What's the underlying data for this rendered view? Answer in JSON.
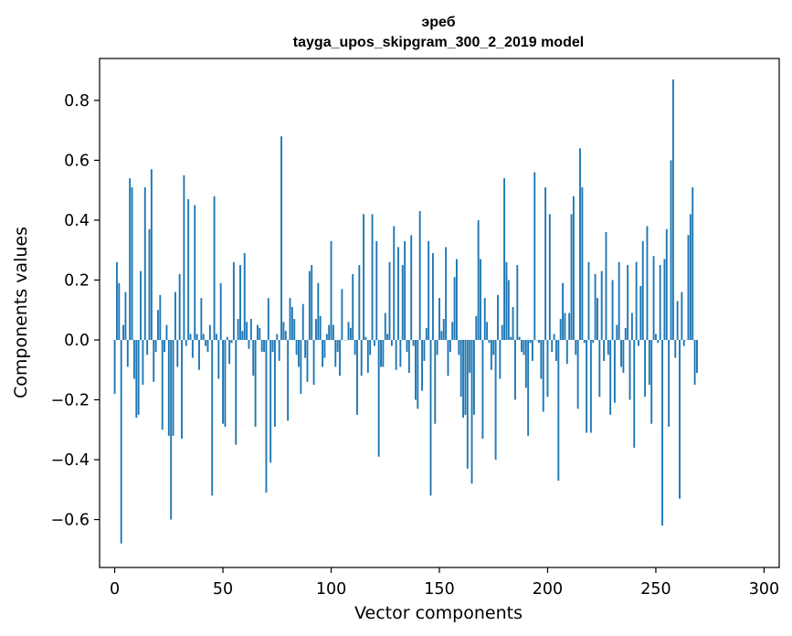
{
  "chart_data": {
    "type": "bar",
    "title_lines": [
      "эреб",
      "tayga_upos_skipgram_300_2_2019 model"
    ],
    "xlabel": "Vector components",
    "ylabel": "Components values",
    "xlim": [
      -7,
      307
    ],
    "ylim": [
      -0.76,
      0.94
    ],
    "xticks": [
      0,
      50,
      100,
      150,
      200,
      250,
      300
    ],
    "yticks": [
      -0.6,
      -0.4,
      -0.2,
      0.0,
      0.2,
      0.4,
      0.6,
      0.8
    ],
    "ytick_labels": [
      "−0.6",
      "−0.4",
      "−0.2",
      "0.0",
      "0.2",
      "0.4",
      "0.6",
      "0.8"
    ],
    "bar_color": "#1f77b4",
    "grid": false,
    "legend": "none",
    "values": [
      -0.18,
      0.26,
      0.19,
      -0.68,
      0.05,
      0.16,
      -0.09,
      0.54,
      0.51,
      -0.13,
      -0.26,
      -0.25,
      0.23,
      -0.15,
      0.51,
      -0.05,
      0.37,
      0.57,
      -0.14,
      -0.04,
      0.1,
      0.15,
      -0.3,
      -0.04,
      0.05,
      -0.32,
      -0.6,
      -0.32,
      0.16,
      -0.09,
      0.22,
      -0.33,
      0.55,
      -0.02,
      0.47,
      0.02,
      -0.06,
      0.45,
      0.02,
      -0.1,
      0.14,
      0.02,
      -0.02,
      -0.04,
      0.05,
      -0.52,
      0.48,
      0.02,
      -0.13,
      0.19,
      -0.28,
      -0.29,
      0.01,
      -0.08,
      -0.01,
      0.26,
      -0.35,
      0.07,
      0.25,
      0.03,
      0.29,
      0.06,
      -0.03,
      0.07,
      -0.12,
      -0.29,
      0.05,
      0.04,
      -0.04,
      -0.04,
      -0.51,
      0.14,
      -0.41,
      -0.04,
      -0.29,
      0.02,
      -0.07,
      0.68,
      0.06,
      0.03,
      -0.27,
      0.14,
      0.11,
      0.07,
      -0.05,
      -0.09,
      -0.18,
      0.12,
      -0.06,
      -0.14,
      0.23,
      0.25,
      -0.15,
      0.07,
      0.19,
      0.08,
      -0.09,
      -0.06,
      0.02,
      0.05,
      0.33,
      0.05,
      -0.09,
      -0.04,
      -0.12,
      0.17,
      0.0,
      0.0,
      0.06,
      0.04,
      0.22,
      -0.05,
      -0.25,
      0.25,
      -0.12,
      0.42,
      0.01,
      -0.11,
      -0.05,
      0.42,
      -0.02,
      0.33,
      -0.39,
      -0.09,
      -0.09,
      0.09,
      0.02,
      0.26,
      -0.02,
      0.38,
      -0.1,
      0.31,
      -0.09,
      0.25,
      0.33,
      -0.04,
      -0.11,
      0.35,
      -0.02,
      -0.2,
      -0.23,
      0.43,
      -0.17,
      -0.07,
      0.04,
      0.33,
      -0.52,
      0.29,
      -0.28,
      -0.05,
      0.14,
      0.03,
      0.07,
      0.31,
      -0.12,
      -0.04,
      0.06,
      0.21,
      0.27,
      -0.05,
      -0.19,
      -0.26,
      -0.25,
      -0.43,
      -0.11,
      -0.48,
      -0.25,
      0.08,
      0.4,
      0.27,
      -0.33,
      0.14,
      0.06,
      -0.01,
      -0.1,
      -0.05,
      -0.4,
      0.15,
      -0.13,
      0.05,
      0.54,
      0.26,
      0.2,
      0.01,
      0.11,
      -0.2,
      0.25,
      0.01,
      -0.04,
      -0.05,
      -0.16,
      -0.32,
      -0.01,
      -0.07,
      0.56,
      0.0,
      -0.01,
      -0.13,
      -0.24,
      0.51,
      -0.19,
      0.42,
      -0.04,
      0.02,
      -0.07,
      -0.47,
      0.07,
      0.19,
      0.09,
      -0.08,
      0.09,
      0.42,
      0.48,
      -0.05,
      -0.23,
      0.64,
      0.51,
      -0.01,
      -0.31,
      0.26,
      -0.31,
      -0.01,
      0.22,
      0.14,
      -0.19,
      0.23,
      -0.07,
      0.36,
      -0.05,
      -0.25,
      0.2,
      -0.21,
      0.05,
      0.26,
      -0.09,
      -0.11,
      0.04,
      0.25,
      -0.2,
      0.09,
      -0.36,
      0.26,
      -0.02,
      0.18,
      0.33,
      -0.19,
      0.38,
      -0.15,
      -0.28,
      0.28,
      0.02,
      -0.01,
      0.25,
      -0.62,
      0.27,
      0.37,
      -0.29,
      0.6,
      0.87,
      -0.06,
      0.13,
      -0.53,
      0.16,
      -0.02,
      0.0,
      0.35,
      0.42,
      0.51,
      -0.15,
      -0.11
    ]
  }
}
